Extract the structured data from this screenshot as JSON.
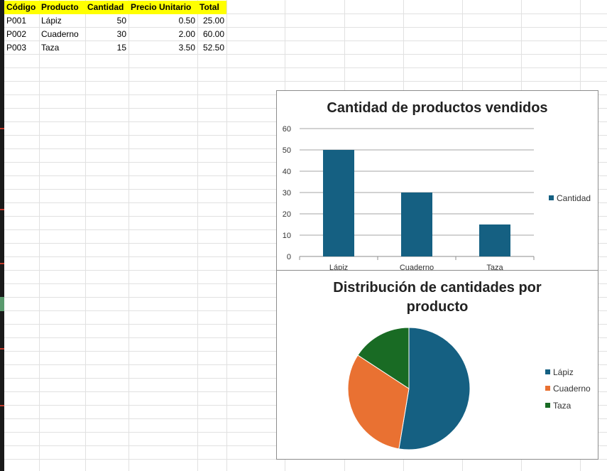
{
  "sheet": {
    "headers": [
      "Código",
      "Producto",
      "Cantidad",
      "Precio Unitario",
      "Total"
    ],
    "rows": [
      [
        "P001",
        "Lápiz",
        "50",
        "0.50",
        "25.00"
      ],
      [
        "P002",
        "Cuaderno",
        "30",
        "2.00",
        "60.00"
      ],
      [
        "P003",
        "Taza",
        "15",
        "3.50",
        "52.50"
      ]
    ]
  },
  "colors": {
    "header_fill": "#ffff00",
    "blue": "#156082",
    "orange": "#e97132",
    "green": "#196b24"
  },
  "chart_data": [
    {
      "type": "bar",
      "title": "Cantidad de productos vendidos",
      "categories": [
        "Lápiz",
        "Cuaderno",
        "Taza"
      ],
      "series": [
        {
          "name": "Cantidad",
          "values": [
            50,
            30,
            15
          ]
        }
      ],
      "ylim": [
        0,
        60
      ],
      "yticks": [
        "0",
        "10",
        "20",
        "30",
        "40",
        "50",
        "60"
      ],
      "grid": true,
      "legend": "right"
    },
    {
      "type": "pie",
      "title": "Distribución de cantidades por producto",
      "title_lines": [
        "Distribución de cantidades por",
        "producto"
      ],
      "categories": [
        "Lápiz",
        "Cuaderno",
        "Taza"
      ],
      "values": [
        50,
        30,
        15
      ],
      "legend": "right"
    }
  ]
}
